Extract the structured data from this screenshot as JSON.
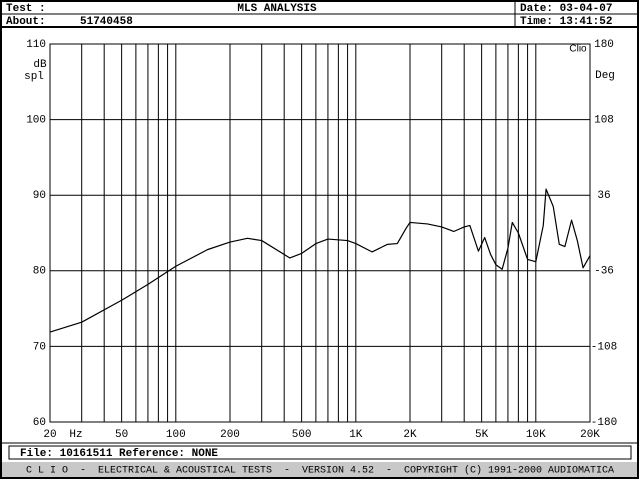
{
  "header": {
    "test_label": "Test :",
    "title": "MLS ANALYSIS",
    "date": "Date: 03-04-07",
    "about_label": "About:",
    "about_value": "51740458",
    "time": "Time: 13:41:52"
  },
  "chart_data": {
    "type": "line",
    "color": "#000000",
    "xscale": "log",
    "grid": true,
    "x": [
      20,
      30,
      50,
      70,
      100,
      150,
      200,
      250,
      300,
      430,
      500,
      600,
      700,
      900,
      1000,
      1230,
      1500,
      1700,
      1900,
      2000,
      2500,
      3000,
      3500,
      4000,
      4300,
      4800,
      5200,
      5600,
      6000,
      6500,
      7000,
      7400,
      8000,
      9000,
      10000,
      11000,
      11400,
      12500,
      13500,
      14500,
      15800,
      17000,
      18300,
      20000
    ],
    "values": [
      71.9,
      73.2,
      76.1,
      78.2,
      80.6,
      82.8,
      83.8,
      84.3,
      84,
      81.7,
      82.3,
      83.6,
      84.2,
      84,
      83.6,
      82.5,
      83.5,
      83.6,
      85.6,
      86.4,
      86.2,
      85.8,
      85.2,
      85.8,
      86,
      82.6,
      84.4,
      82.2,
      80.8,
      80.2,
      83,
      86.4,
      85,
      81.5,
      81.2,
      86,
      90.8,
      88.5,
      83.5,
      83.2,
      86.7,
      84,
      80.4,
      82
    ],
    "xlim": [
      20,
      20000
    ],
    "ylim": [
      60,
      110
    ],
    "y2lim": [
      -180,
      180
    ],
    "xticks": [
      20,
      {
        "value": 50,
        "label": "50"
      },
      100,
      200,
      500,
      {
        "value": 1000,
        "label": "1K"
      },
      {
        "value": 2000,
        "label": "2K"
      },
      {
        "value": 5000,
        "label": "5K"
      },
      {
        "value": 10000,
        "label": "10K"
      },
      {
        "value": 20000,
        "label": "20K"
      }
    ],
    "xgrid": [
      20,
      30,
      40,
      50,
      60,
      70,
      80,
      90,
      100,
      200,
      300,
      400,
      500,
      600,
      700,
      800,
      900,
      1000,
      2000,
      3000,
      4000,
      5000,
      6000,
      7000,
      8000,
      9000,
      10000,
      20000
    ],
    "yticks": [
      60,
      70,
      80,
      90,
      100,
      110
    ],
    "y2ticks": [
      -180,
      -108,
      -36,
      36,
      108,
      180
    ],
    "x_unit": "Hz",
    "y_label_top": "dB",
    "y_label_bottom": "spl",
    "y2_label": "Deg",
    "watermark": "Clio"
  },
  "footer": {
    "file": "File: 10161511 Reference: NONE",
    "banner": "C L I O  -  ELECTRICAL & ACOUSTICAL TESTS  -  VERSION 4.52  -  COPYRIGHT (C) 1991-2000 AUDIOMATICA"
  }
}
